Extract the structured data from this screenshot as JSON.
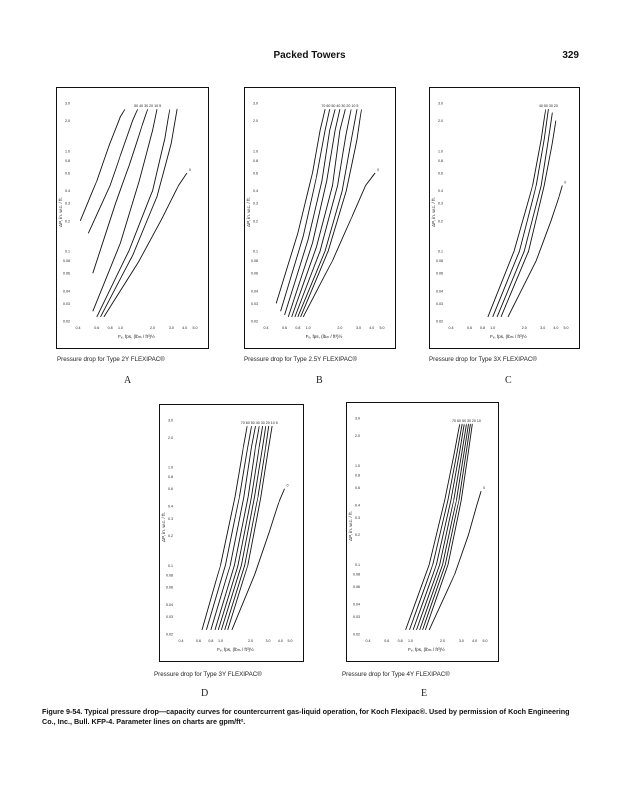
{
  "header": {
    "title": "Packed Towers",
    "page_number": "329"
  },
  "charts": [
    {
      "id": "A",
      "caption": "Pressure drop for Type 2Y FLEXIPAC®",
      "letter": "A",
      "y_ticks": [
        "3.0",
        "2.0",
        "1.0",
        "0.8",
        "0.6",
        "0.4",
        "0.3",
        "0.2",
        "0.1",
        "0.08",
        "0.06",
        "0.04",
        "0.03",
        "0.02"
      ],
      "x_ticks": [
        "0.4",
        "0.6",
        "0.8",
        "1.0",
        "2.0",
        "3.0",
        "4.0",
        "5.0"
      ],
      "ylabel": "ΔP, in. w.c. / ft.",
      "xlabel": "Fᵥ, fps, (lbₘ / ft³)½",
      "param_labels": "50  40  30  20  10  5",
      "last_label": "0"
    },
    {
      "id": "B",
      "caption": "Pressure drop for Type 2.5Y FLEXIPAC®",
      "letter": "B",
      "y_ticks": [
        "3.0",
        "2.0",
        "1.0",
        "0.8",
        "0.6",
        "0.4",
        "0.3",
        "0.2",
        "0.1",
        "0.08",
        "0.06",
        "0.04",
        "0.03",
        "0.02"
      ],
      "x_ticks": [
        "0.4",
        "0.6",
        "0.8",
        "1.0",
        "2.0",
        "3.0",
        "4.0",
        "5.0"
      ],
      "ylabel": "ΔP, in. w.c. / ft.",
      "xlabel": "Fᵥ, fps, (lbₘ / ft³)½",
      "param_labels": "70 60 50 40 30 20 10 5",
      "last_label": "0"
    },
    {
      "id": "C",
      "caption": "Pressure drop for Type 3X FLEXIPAC®",
      "letter": "C",
      "y_ticks": [
        "3.0",
        "2.0",
        "1.0",
        "0.8",
        "0.6",
        "0.4",
        "0.3",
        "0.2",
        "0.1",
        "0.08",
        "0.06",
        "0.04",
        "0.03",
        "0.02"
      ],
      "x_ticks": [
        "0.4",
        "0.6",
        "0.8",
        "1.0",
        "2.0",
        "3.0",
        "4.0",
        "5.0"
      ],
      "ylabel": "ΔP, in. w.c. / ft.",
      "xlabel": "Fᵥ, fps, (lbₘ / ft³)½",
      "param_labels": "40 50 30 20",
      "last_label": "0"
    },
    {
      "id": "D",
      "caption": "Pressure drop for Type 3Y FLEXIPAC®",
      "letter": "D",
      "y_ticks": [
        "3.0",
        "2.0",
        "1.0",
        "0.8",
        "0.6",
        "0.4",
        "0.3",
        "0.2",
        "0.1",
        "0.08",
        "0.06",
        "0.04",
        "0.03",
        "0.02"
      ],
      "x_ticks": [
        "0.4",
        "0.6",
        "0.8",
        "1.0",
        "2.0",
        "3.0",
        "4.0",
        "5.0"
      ],
      "ylabel": "ΔP, in. w.c. / ft.",
      "xlabel": "Fᵥ, fps, (lbₘ / ft³)½",
      "param_labels": "70 60 50 40 30 20 10 5",
      "last_label": "0"
    },
    {
      "id": "E",
      "caption": "Pressure drop for Type 4Y FLEXIPAC®",
      "letter": "E",
      "y_ticks": [
        "3.0",
        "2.0",
        "1.0",
        "0.8",
        "0.6",
        "0.4",
        "0.3",
        "0.2",
        "0.1",
        "0.08",
        "0.06",
        "0.04",
        "0.03",
        "0.02"
      ],
      "x_ticks": [
        "0.4",
        "0.6",
        "0.8",
        "1.0",
        "2.0",
        "3.0",
        "4.0",
        "5.0"
      ],
      "ylabel": "ΔP, in. w.c. / ft.",
      "xlabel": "Fᵥ, fps, (lbₘ / ft³)½",
      "param_labels": "70 60 50 30 20 10",
      "last_label": "0"
    }
  ],
  "figure_caption": "Figure 9-54. Typical pressure drop—capacity curves for countercurrent gas-liquid operation, for Koch Flexipac®. Used by permission of Koch Engineering Co., Inc., Bull. KFP-4. Parameter lines on charts are gpm/ft².",
  "chart_data": [
    {
      "type": "line",
      "title": "Pressure drop for Type 2Y FLEXIPAC®",
      "xlabel": "Fᵥ, fps, (lbₘ / ft³)½",
      "ylabel": "ΔP, in. w.c. / ft.",
      "x_scale": "log",
      "y_scale": "log",
      "xlim": [
        0.4,
        5.0
      ],
      "ylim": [
        0.02,
        3.0
      ],
      "series": [
        {
          "name": "50",
          "x": [
            0.42,
            0.6,
            0.8,
            1.0,
            1.1
          ],
          "y": [
            0.2,
            0.5,
            1.2,
            2.2,
            2.6
          ]
        },
        {
          "name": "40",
          "x": [
            0.5,
            0.8,
            1.0,
            1.3,
            1.45
          ],
          "y": [
            0.15,
            0.45,
            0.9,
            2.0,
            2.6
          ]
        },
        {
          "name": "30",
          "x": [
            0.55,
            0.9,
            1.2,
            1.6,
            1.8
          ],
          "y": [
            0.06,
            0.3,
            0.7,
            1.8,
            2.6
          ]
        },
        {
          "name": "20",
          "x": [
            0.55,
            1.0,
            1.5,
            2.0,
            2.2
          ],
          "y": [
            0.025,
            0.12,
            0.5,
            1.6,
            2.6
          ]
        },
        {
          "name": "10",
          "x": [
            0.6,
            1.2,
            2.0,
            2.6,
            2.9
          ],
          "y": [
            0.022,
            0.1,
            0.4,
            1.3,
            2.6
          ]
        },
        {
          "name": "5",
          "x": [
            0.65,
            1.3,
            2.2,
            3.0,
            3.4
          ],
          "y": [
            0.022,
            0.09,
            0.35,
            1.2,
            2.6
          ]
        },
        {
          "name": "0",
          "x": [
            0.7,
            1.5,
            2.5,
            3.5,
            4.2
          ],
          "y": [
            0.022,
            0.08,
            0.22,
            0.45,
            0.6
          ]
        }
      ]
    },
    {
      "type": "line",
      "title": "Pressure drop for Type 2.5Y FLEXIPAC®",
      "xlabel": "Fᵥ, fps, (lbₘ / ft³)½",
      "ylabel": "ΔP, in. w.c. / ft.",
      "x_scale": "log",
      "y_scale": "log",
      "xlim": [
        0.4,
        5.0
      ],
      "ylim": [
        0.02,
        3.0
      ],
      "series": [
        {
          "name": "70",
          "x": [
            0.5,
            0.8,
            1.1,
            1.3,
            1.45
          ],
          "y": [
            0.03,
            0.15,
            0.6,
            1.6,
            2.6
          ]
        },
        {
          "name": "60",
          "x": [
            0.55,
            0.9,
            1.2,
            1.45,
            1.6
          ],
          "y": [
            0.025,
            0.14,
            0.55,
            1.6,
            2.6
          ]
        },
        {
          "name": "50",
          "x": [
            0.6,
            1.0,
            1.35,
            1.6,
            1.8
          ],
          "y": [
            0.023,
            0.13,
            0.5,
            1.6,
            2.6
          ]
        },
        {
          "name": "40",
          "x": [
            0.65,
            1.1,
            1.5,
            1.8,
            2.0
          ],
          "y": [
            0.022,
            0.12,
            0.5,
            1.6,
            2.6
          ]
        },
        {
          "name": "30",
          "x": [
            0.7,
            1.2,
            1.7,
            2.0,
            2.25
          ],
          "y": [
            0.022,
            0.11,
            0.45,
            1.6,
            2.6
          ]
        },
        {
          "name": "20",
          "x": [
            0.75,
            1.3,
            1.9,
            2.3,
            2.55
          ],
          "y": [
            0.022,
            0.1,
            0.45,
            1.5,
            2.6
          ]
        },
        {
          "name": "10",
          "x": [
            0.8,
            1.45,
            2.1,
            2.6,
            2.9
          ],
          "y": [
            0.022,
            0.1,
            0.4,
            1.4,
            2.6
          ]
        },
        {
          "name": "5",
          "x": [
            0.85,
            1.55,
            2.3,
            2.9,
            3.2
          ],
          "y": [
            0.022,
            0.1,
            0.4,
            1.3,
            2.6
          ]
        },
        {
          "name": "0",
          "x": [
            0.9,
            1.7,
            2.6,
            3.5,
            4.3
          ],
          "y": [
            0.022,
            0.08,
            0.22,
            0.45,
            0.6
          ]
        }
      ]
    },
    {
      "type": "line",
      "title": "Pressure drop for Type 3X FLEXIPAC®",
      "xlabel": "Fᵥ, fps, (lbₘ / ft³)½",
      "ylabel": "ΔP, in. w.c. / ft.",
      "x_scale": "log",
      "y_scale": "log",
      "xlim": [
        0.4,
        5.0
      ],
      "ylim": [
        0.02,
        3.0
      ],
      "series": [
        {
          "name": "40",
          "x": [
            0.9,
            1.6,
            2.4,
            2.9,
            3.2
          ],
          "y": [
            0.022,
            0.1,
            0.45,
            1.3,
            2.6
          ]
        },
        {
          "name": "50",
          "x": [
            1.0,
            1.8,
            2.6,
            3.1,
            3.4
          ],
          "y": [
            0.022,
            0.1,
            0.45,
            1.3,
            2.6
          ]
        },
        {
          "name": "30",
          "x": [
            1.1,
            2.0,
            2.9,
            3.4,
            3.7
          ],
          "y": [
            0.022,
            0.1,
            0.45,
            1.3,
            2.4
          ]
        },
        {
          "name": "20",
          "x": [
            1.2,
            2.2,
            3.1,
            3.7,
            4.0
          ],
          "y": [
            0.022,
            0.1,
            0.45,
            1.2,
            2.0
          ]
        },
        {
          "name": "0",
          "x": [
            1.4,
            2.6,
            3.6,
            4.3,
            4.6
          ],
          "y": [
            0.022,
            0.08,
            0.2,
            0.35,
            0.45
          ]
        }
      ]
    },
    {
      "type": "line",
      "title": "Pressure drop for Type 3Y FLEXIPAC®",
      "xlabel": "Fᵥ, fps, (lbₘ / ft³)½",
      "ylabel": "ΔP, in. w.c. / ft.",
      "x_scale": "log",
      "y_scale": "log",
      "xlim": [
        0.4,
        5.0
      ],
      "ylim": [
        0.02,
        3.0
      ],
      "series": [
        {
          "name": "70",
          "x": [
            0.65,
            1.0,
            1.4,
            1.7,
            1.85
          ],
          "y": [
            0.022,
            0.1,
            0.5,
            1.6,
            2.6
          ]
        },
        {
          "name": "60",
          "x": [
            0.72,
            1.12,
            1.55,
            1.88,
            2.05
          ],
          "y": [
            0.022,
            0.1,
            0.5,
            1.6,
            2.6
          ]
        },
        {
          "name": "50",
          "x": [
            0.8,
            1.25,
            1.72,
            2.05,
            2.25
          ],
          "y": [
            0.022,
            0.1,
            0.5,
            1.6,
            2.6
          ]
        },
        {
          "name": "40",
          "x": [
            0.88,
            1.38,
            1.9,
            2.25,
            2.45
          ],
          "y": [
            0.022,
            0.1,
            0.5,
            1.6,
            2.6
          ]
        },
        {
          "name": "30",
          "x": [
            0.95,
            1.5,
            2.05,
            2.45,
            2.65
          ],
          "y": [
            0.022,
            0.1,
            0.5,
            1.6,
            2.6
          ]
        },
        {
          "name": "20",
          "x": [
            1.02,
            1.62,
            2.2,
            2.65,
            2.85
          ],
          "y": [
            0.022,
            0.1,
            0.5,
            1.6,
            2.6
          ]
        },
        {
          "name": "10",
          "x": [
            1.1,
            1.75,
            2.38,
            2.85,
            3.05
          ],
          "y": [
            0.022,
            0.1,
            0.5,
            1.6,
            2.6
          ]
        },
        {
          "name": "5",
          "x": [
            1.18,
            1.88,
            2.55,
            3.05,
            3.3
          ],
          "y": [
            0.022,
            0.1,
            0.5,
            1.6,
            2.6
          ]
        },
        {
          "name": "0",
          "x": [
            1.3,
            2.2,
            3.1,
            3.9,
            4.4
          ],
          "y": [
            0.022,
            0.08,
            0.22,
            0.45,
            0.6
          ]
        }
      ]
    },
    {
      "type": "line",
      "title": "Pressure drop for Type 4Y FLEXIPAC®",
      "xlabel": "Fᵥ, fps, (lbₘ / ft³)½",
      "ylabel": "ΔP, in. w.c. / ft.",
      "x_scale": "log",
      "y_scale": "log",
      "xlim": [
        0.4,
        5.0
      ],
      "ylim": [
        0.02,
        3.0
      ],
      "series": [
        {
          "name": "70",
          "x": [
            0.9,
            1.5,
            2.1,
            2.6,
            2.9
          ],
          "y": [
            0.022,
            0.1,
            0.45,
            1.4,
            2.6
          ]
        },
        {
          "name": "60",
          "x": [
            0.98,
            1.62,
            2.25,
            2.75,
            3.05
          ],
          "y": [
            0.022,
            0.1,
            0.45,
            1.4,
            2.6
          ]
        },
        {
          "name": "50",
          "x": [
            1.06,
            1.75,
            2.4,
            2.9,
            3.2
          ],
          "y": [
            0.022,
            0.1,
            0.45,
            1.4,
            2.6
          ]
        },
        {
          "name": "40",
          "x": [
            1.14,
            1.88,
            2.55,
            3.05,
            3.35
          ],
          "y": [
            0.022,
            0.1,
            0.45,
            1.4,
            2.6
          ]
        },
        {
          "name": "30",
          "x": [
            1.22,
            2.0,
            2.7,
            3.2,
            3.5
          ],
          "y": [
            0.022,
            0.1,
            0.45,
            1.4,
            2.6
          ]
        },
        {
          "name": "20",
          "x": [
            1.3,
            2.12,
            2.85,
            3.35,
            3.65
          ],
          "y": [
            0.022,
            0.1,
            0.45,
            1.4,
            2.6
          ]
        },
        {
          "name": "10",
          "x": [
            1.38,
            2.25,
            3.0,
            3.5,
            3.8
          ],
          "y": [
            0.022,
            0.1,
            0.45,
            1.4,
            2.6
          ]
        },
        {
          "name": "0",
          "x": [
            1.5,
            2.6,
            3.5,
            4.2,
            4.6
          ],
          "y": [
            0.022,
            0.08,
            0.2,
            0.4,
            0.55
          ]
        }
      ]
    }
  ]
}
